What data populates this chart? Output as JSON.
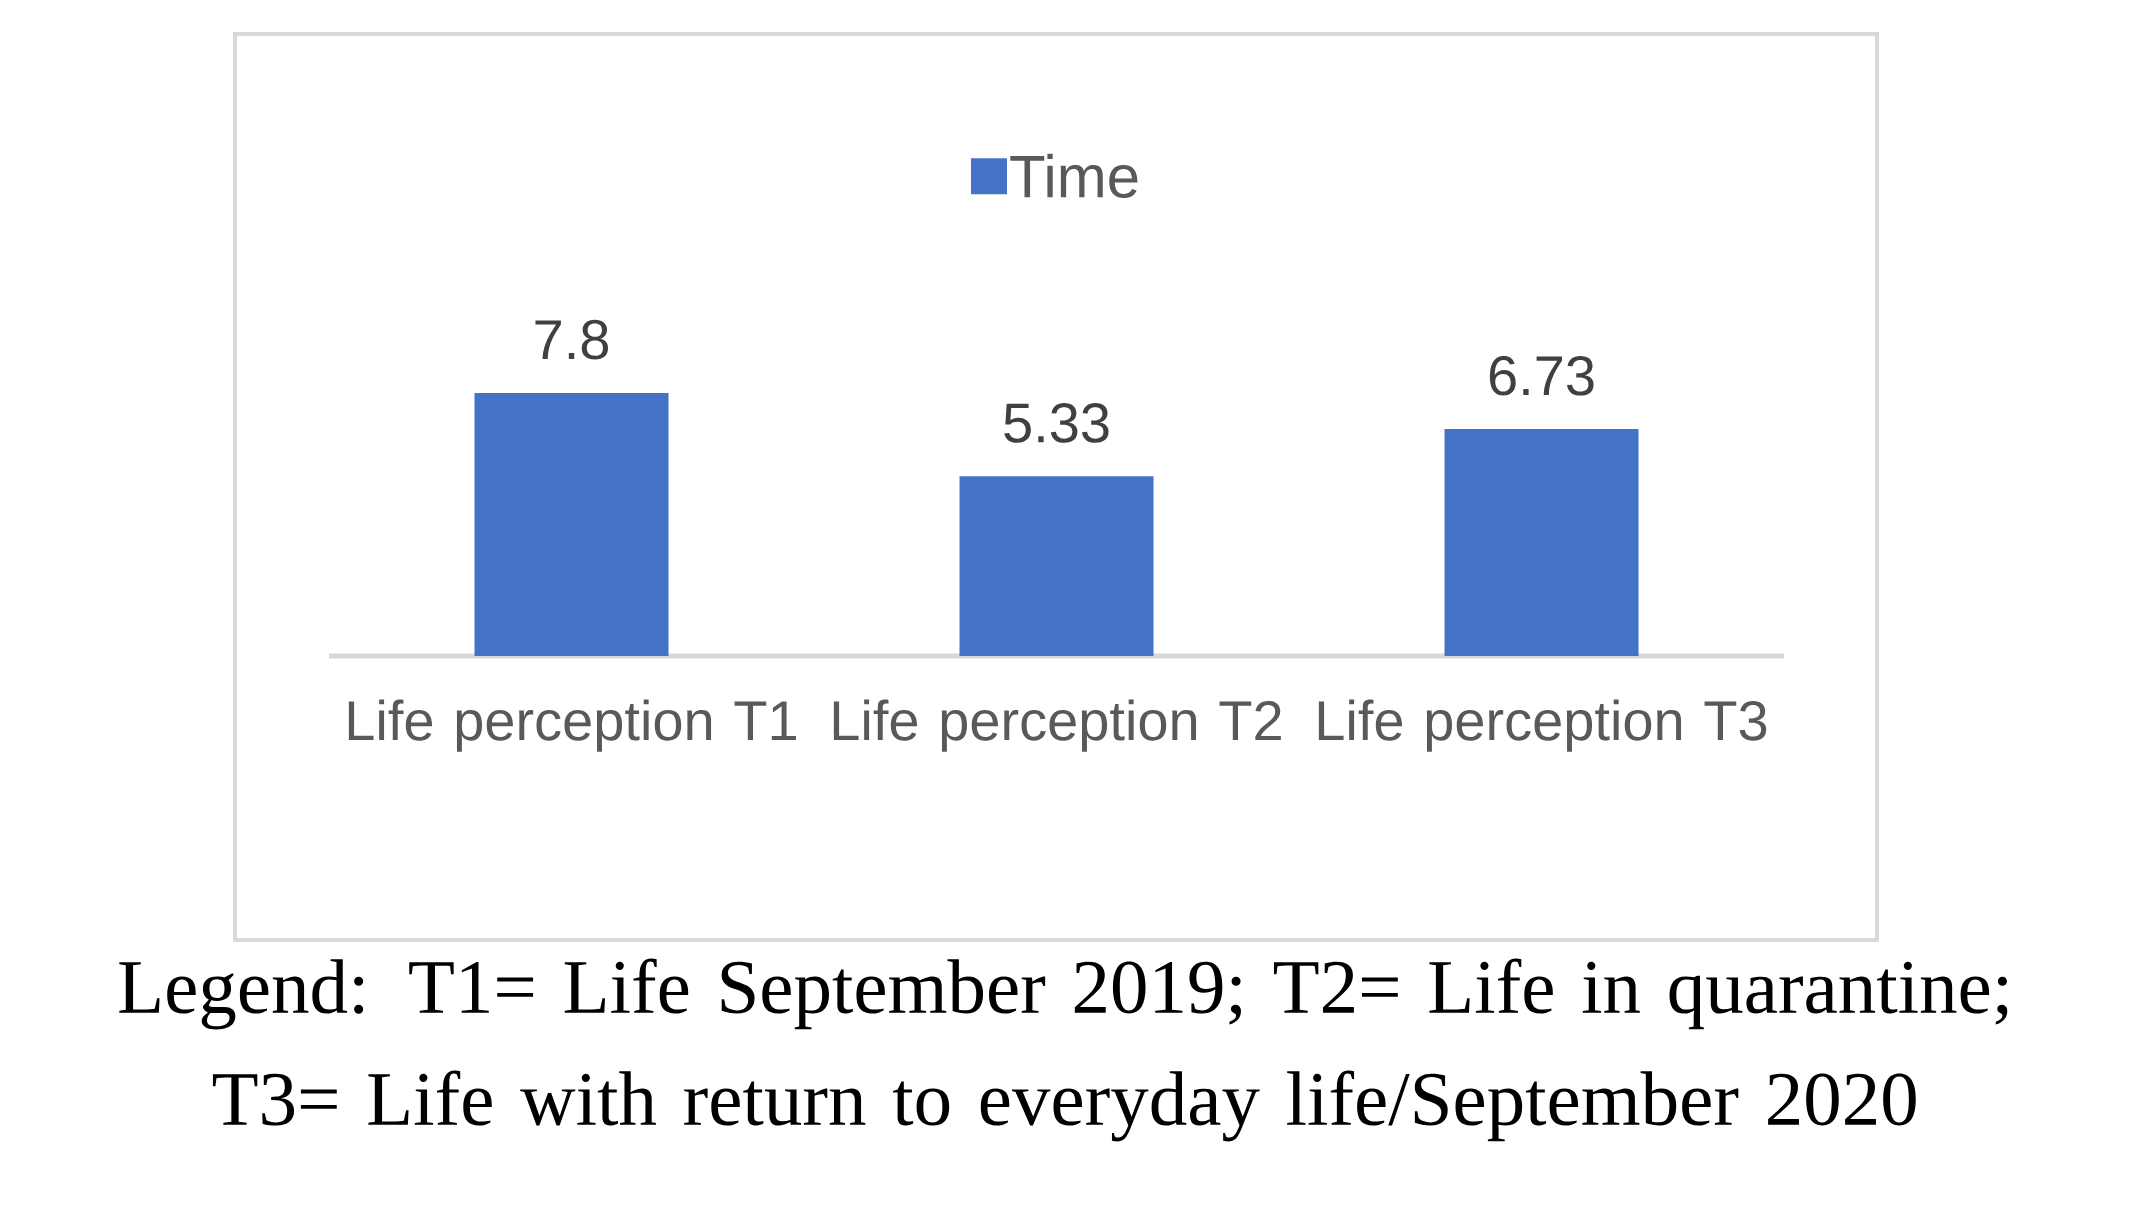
{
  "chart_data": {
    "type": "bar",
    "categories": [
      "Life perception T1",
      "Life perception T2",
      "Life perception T3"
    ],
    "series": [
      {
        "name": "Time",
        "color": "#4472c4",
        "values": [
          7.8,
          5.33,
          6.73
        ]
      }
    ],
    "tick_labels": "x",
    "data_labels": true,
    "legend": "top",
    "annotations": [
      "Legend: T1= Life September 2019; T2= Life in quarantine; T3= Life with return to everyday life/September 2020"
    ]
  }
}
